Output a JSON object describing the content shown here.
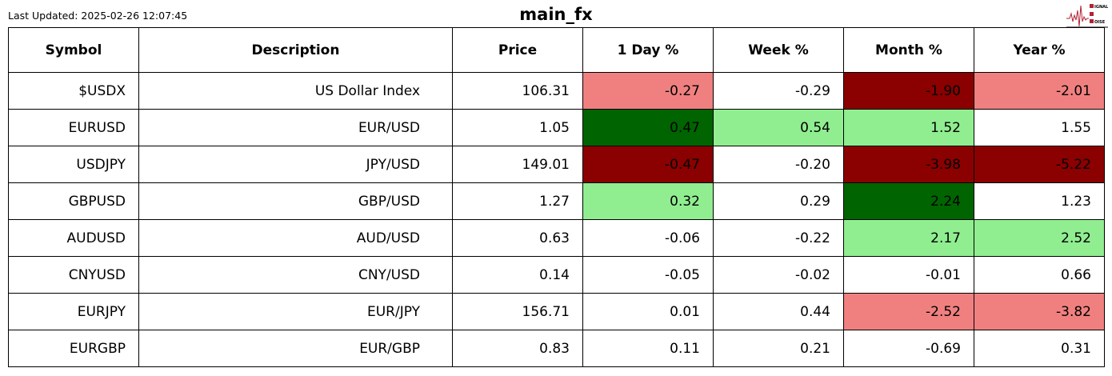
{
  "last_updated": "Last Updated: 2025-02-26 12:07:45",
  "title": "main_fx",
  "logo": {
    "text": "SIGNAL 2 NOISE",
    "color": "#b22234"
  },
  "colors": {
    "lightcoral": "#f08080",
    "darkred": "#8b0000",
    "darkgreen": "#006400",
    "lightgreen": "#90ee90",
    "none": "#ffffff"
  },
  "chart_data": {
    "type": "table",
    "title": "main_fx",
    "columns": [
      "Symbol",
      "Description",
      "Price",
      "1 Day %",
      "Week %",
      "Month %",
      "Year %"
    ],
    "rows": [
      {
        "cells": [
          "$USDX",
          "US Dollar Index",
          "106.31",
          "-0.27",
          "-0.29",
          "-1.90",
          "-2.01"
        ],
        "colors": [
          "none",
          "none",
          "none",
          "lightcoral",
          "none",
          "darkred",
          "lightcoral"
        ]
      },
      {
        "cells": [
          "EURUSD",
          "EUR/USD",
          "1.05",
          "0.47",
          "0.54",
          "1.52",
          "1.55"
        ],
        "colors": [
          "none",
          "none",
          "none",
          "darkgreen",
          "lightgreen",
          "lightgreen",
          "none"
        ]
      },
      {
        "cells": [
          "USDJPY",
          "JPY/USD",
          "149.01",
          "-0.47",
          "-0.20",
          "-3.98",
          "-5.22"
        ],
        "colors": [
          "none",
          "none",
          "none",
          "darkred",
          "none",
          "darkred",
          "darkred"
        ]
      },
      {
        "cells": [
          "GBPUSD",
          "GBP/USD",
          "1.27",
          "0.32",
          "0.29",
          "2.24",
          "1.23"
        ],
        "colors": [
          "none",
          "none",
          "none",
          "lightgreen",
          "none",
          "darkgreen",
          "none"
        ]
      },
      {
        "cells": [
          "AUDUSD",
          "AUD/USD",
          "0.63",
          "-0.06",
          "-0.22",
          "2.17",
          "2.52"
        ],
        "colors": [
          "none",
          "none",
          "none",
          "none",
          "none",
          "lightgreen",
          "lightgreen"
        ]
      },
      {
        "cells": [
          "CNYUSD",
          "CNY/USD",
          "0.14",
          "-0.05",
          "-0.02",
          "-0.01",
          "0.66"
        ],
        "colors": [
          "none",
          "none",
          "none",
          "none",
          "none",
          "none",
          "none"
        ]
      },
      {
        "cells": [
          "EURJPY",
          "EUR/JPY",
          "156.71",
          "0.01",
          "0.44",
          "-2.52",
          "-3.82"
        ],
        "colors": [
          "none",
          "none",
          "none",
          "none",
          "none",
          "lightcoral",
          "lightcoral"
        ]
      },
      {
        "cells": [
          "EURGBP",
          "EUR/GBP",
          "0.83",
          "0.11",
          "0.21",
          "-0.69",
          "0.31"
        ],
        "colors": [
          "none",
          "none",
          "none",
          "none",
          "none",
          "none",
          "none"
        ]
      }
    ]
  }
}
